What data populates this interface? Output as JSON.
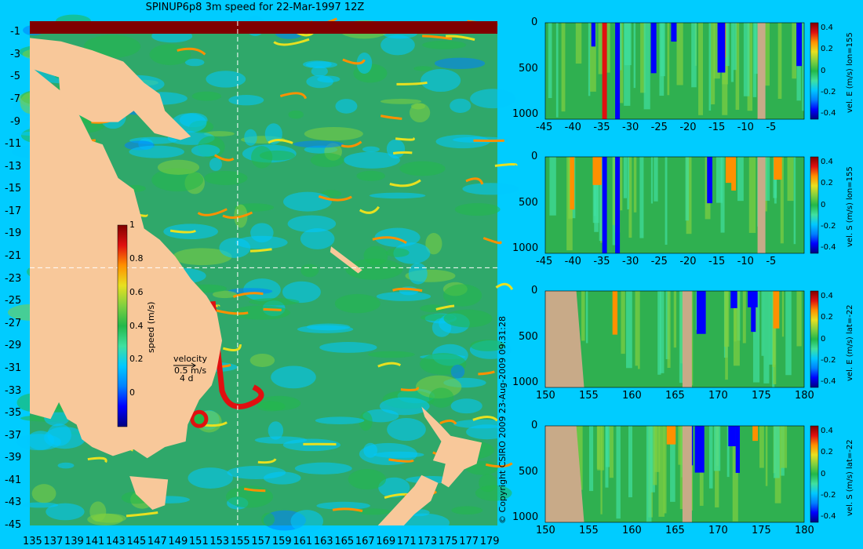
{
  "title": "SPINUP6p8 3m speed for 22-Mar-1997 12Z",
  "copyright": "© Copyright CSIRO 2009   23-Aug-2009 09:31:28",
  "colors": {
    "background": "#00ccff",
    "land": "#f8c89a",
    "section_land": "#c8aa88"
  },
  "colormap": [
    "#00007f",
    "#0000ff",
    "#0080ff",
    "#00c8ff",
    "#40e0a0",
    "#22b84a",
    "#80d040",
    "#e8e020",
    "#ff9000",
    "#e01010",
    "#800000"
  ],
  "chart_data": [
    {
      "type": "heatmap",
      "title": "SPINUP6p8 3m speed for 22-Mar-1997 12Z",
      "x_ticks": [
        "135",
        "137",
        "139",
        "141",
        "143",
        "145",
        "147",
        "149",
        "151",
        "153",
        "155",
        "157",
        "159",
        "161",
        "163",
        "165",
        "167",
        "169",
        "171",
        "173",
        "175",
        "177",
        "179"
      ],
      "y_ticks": [
        "-1",
        "-3",
        "-5",
        "-7",
        "-9",
        "-11",
        "-13",
        "-15",
        "-17",
        "-19",
        "-21",
        "-23",
        "-25",
        "-27",
        "-29",
        "-31",
        "-33",
        "-35",
        "-37",
        "-39",
        "-41",
        "-43",
        "-45"
      ],
      "xlim": [
        135,
        180
      ],
      "ylim": [
        -45,
        0
      ],
      "crosshair": {
        "lon": 155,
        "lat": -22
      },
      "colorbar": {
        "label": "speed (m/s)",
        "ticks": [
          "1",
          "0.8",
          "0.6",
          "0.4",
          "0.2",
          "0"
        ],
        "range": [
          -0.2,
          1
        ]
      },
      "velocity_key": {
        "title": "velocity",
        "speed": "0.5 m/s",
        "duration": "4 d"
      }
    },
    {
      "type": "heatmap",
      "x_ticks": [
        "-45",
        "-40",
        "-35",
        "-30",
        "-25",
        "-20",
        "-15",
        "-10",
        "-5"
      ],
      "y_ticks": [
        "0",
        "500",
        "1000"
      ],
      "xlim": [
        -45,
        0
      ],
      "ylim": [
        0,
        1050
      ],
      "colorbar": {
        "label": "vel. E (m/s) lon=155",
        "ticks": [
          "0.4",
          "0.2",
          "0",
          "-0.2",
          "-0.4"
        ],
        "range": [
          -0.45,
          0.45
        ]
      }
    },
    {
      "type": "heatmap",
      "x_ticks": [
        "-45",
        "-40",
        "-35",
        "-30",
        "-25",
        "-20",
        "-15",
        "-10",
        "-5"
      ],
      "y_ticks": [
        "0",
        "500",
        "1000"
      ],
      "xlim": [
        -45,
        0
      ],
      "ylim": [
        0,
        1050
      ],
      "colorbar": {
        "label": "vel. S (m/s) lon=155",
        "ticks": [
          "0.4",
          "0.2",
          "0",
          "-0.2",
          "-0.4"
        ],
        "range": [
          -0.45,
          0.45
        ]
      }
    },
    {
      "type": "heatmap",
      "x_ticks": [
        "150",
        "155",
        "160",
        "165",
        "170",
        "175",
        "180"
      ],
      "y_ticks": [
        "0",
        "500",
        "1000"
      ],
      "xlim": [
        150,
        180
      ],
      "ylim": [
        0,
        1050
      ],
      "colorbar": {
        "label": "vel. E (m/s) lat=-22",
        "ticks": [
          "0.4",
          "0.2",
          "0",
          "-0.2",
          "-0.4"
        ],
        "range": [
          -0.45,
          0.45
        ]
      }
    },
    {
      "type": "heatmap",
      "x_ticks": [
        "150",
        "155",
        "160",
        "165",
        "170",
        "175",
        "180"
      ],
      "y_ticks": [
        "0",
        "500",
        "1000"
      ],
      "xlim": [
        150,
        180
      ],
      "ylim": [
        0,
        1050
      ],
      "colorbar": {
        "label": "vel. S (m/s) lat=-22",
        "ticks": [
          "0.4",
          "0.2",
          "0",
          "-0.2",
          "-0.4"
        ],
        "range": [
          -0.45,
          0.45
        ]
      }
    }
  ]
}
